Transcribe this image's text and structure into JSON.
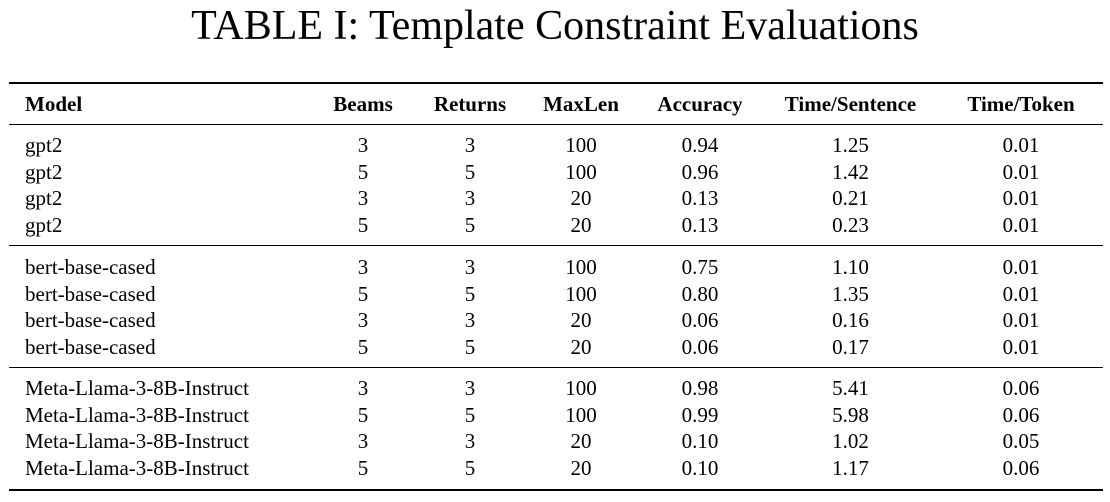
{
  "caption": "TABLE I: Template Constraint Evaluations",
  "columns": [
    "Model",
    "Beams",
    "Returns",
    "MaxLen",
    "Accuracy",
    "Time/Sentence",
    "Time/Token"
  ],
  "groups": [
    {
      "rows": [
        [
          "gpt2",
          "3",
          "3",
          "100",
          "0.94",
          "1.25",
          "0.01"
        ],
        [
          "gpt2",
          "5",
          "5",
          "100",
          "0.96",
          "1.42",
          "0.01"
        ],
        [
          "gpt2",
          "3",
          "3",
          "20",
          "0.13",
          "0.21",
          "0.01"
        ],
        [
          "gpt2",
          "5",
          "5",
          "20",
          "0.13",
          "0.23",
          "0.01"
        ]
      ]
    },
    {
      "rows": [
        [
          "bert-base-cased",
          "3",
          "3",
          "100",
          "0.75",
          "1.10",
          "0.01"
        ],
        [
          "bert-base-cased",
          "5",
          "5",
          "100",
          "0.80",
          "1.35",
          "0.01"
        ],
        [
          "bert-base-cased",
          "3",
          "3",
          "20",
          "0.06",
          "0.16",
          "0.01"
        ],
        [
          "bert-base-cased",
          "5",
          "5",
          "20",
          "0.06",
          "0.17",
          "0.01"
        ]
      ]
    },
    {
      "rows": [
        [
          "Meta-Llama-3-8B-Instruct",
          "3",
          "3",
          "100",
          "0.98",
          "5.41",
          "0.06"
        ],
        [
          "Meta-Llama-3-8B-Instruct",
          "5",
          "5",
          "100",
          "0.99",
          "5.98",
          "0.06"
        ],
        [
          "Meta-Llama-3-8B-Instruct",
          "3",
          "3",
          "20",
          "0.10",
          "1.02",
          "0.05"
        ],
        [
          "Meta-Llama-3-8B-Instruct",
          "5",
          "5",
          "20",
          "0.10",
          "1.17",
          "0.06"
        ]
      ]
    }
  ]
}
